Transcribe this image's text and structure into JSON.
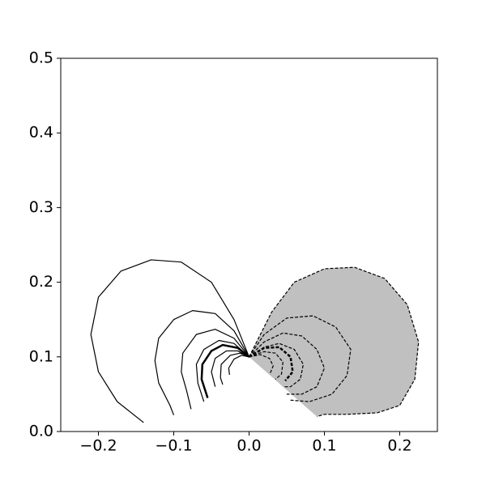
{
  "chart_data": {
    "type": "contour",
    "xlim": [
      -0.25,
      0.25
    ],
    "ylim": [
      0,
      0.5
    ],
    "xticks": [
      {
        "value": -0.2,
        "label": "−0.2"
      },
      {
        "value": -0.1,
        "label": "−0.1"
      },
      {
        "value": 0,
        "label": "0.0"
      },
      {
        "value": 0.1,
        "label": "0.1"
      },
      {
        "value": 0.2,
        "label": "0.2"
      }
    ],
    "yticks": [
      {
        "value": 0,
        "label": "0.0"
      },
      {
        "value": 0.1,
        "label": "0.1"
      },
      {
        "value": 0.2,
        "label": "0.2"
      },
      {
        "value": 0.3,
        "label": "0.3"
      },
      {
        "value": 0.4,
        "label": "0.4"
      },
      {
        "value": 0.5,
        "label": "0.5"
      }
    ],
    "grid": false,
    "series": [
      {
        "color": "#000000",
        "dashed": false,
        "width": 1.2,
        "x": [
          0,
          -0.02,
          -0.05,
          -0.09,
          -0.13,
          -0.17,
          -0.2,
          -0.21,
          -0.2,
          -0.175,
          -0.14
        ],
        "values": [
          0.1,
          0.15,
          0.2,
          0.227,
          0.23,
          0.215,
          0.18,
          0.13,
          0.08,
          0.04,
          0.012
        ]
      },
      {
        "color": "#000000",
        "dashed": false,
        "width": 1.2,
        "x": [
          0,
          -0.02,
          -0.045,
          -0.075,
          -0.1,
          -0.12,
          -0.125,
          -0.12,
          -0.105,
          -0.1
        ],
        "values": [
          0.1,
          0.135,
          0.158,
          0.162,
          0.15,
          0.125,
          0.095,
          0.065,
          0.035,
          0.022
        ]
      },
      {
        "color": "#000000",
        "dashed": false,
        "width": 1.2,
        "x": [
          0,
          -0.02,
          -0.045,
          -0.07,
          -0.088,
          -0.09,
          -0.083,
          -0.077
        ],
        "values": [
          0.1,
          0.125,
          0.137,
          0.13,
          0.105,
          0.08,
          0.055,
          0.03
        ]
      },
      {
        "color": "#000000",
        "dashed": false,
        "width": 1.2,
        "x": [
          0,
          -0.02,
          -0.04,
          -0.06,
          -0.07,
          -0.068,
          -0.06
        ],
        "values": [
          0.1,
          0.118,
          0.122,
          0.11,
          0.09,
          0.065,
          0.04
        ]
      },
      {
        "color": "#000000",
        "dashed": false,
        "width": 2.5,
        "x": [
          0,
          -0.015,
          -0.035,
          -0.05,
          -0.062,
          -0.063,
          -0.055
        ],
        "values": [
          0.1,
          0.112,
          0.116,
          0.108,
          0.09,
          0.07,
          0.045
        ]
      },
      {
        "color": "#000000",
        "dashed": false,
        "width": 1.2,
        "x": [
          0,
          -0.015,
          -0.03,
          -0.045,
          -0.05,
          -0.045
        ],
        "values": [
          0.1,
          0.108,
          0.108,
          0.098,
          0.08,
          0.06
        ]
      },
      {
        "color": "#000000",
        "dashed": false,
        "width": 1.2,
        "x": [
          0,
          -0.012,
          -0.025,
          -0.037,
          -0.038,
          -0.035
        ],
        "values": [
          0.1,
          0.105,
          0.102,
          0.09,
          0.072,
          0.063
        ]
      },
      {
        "color": "#000000",
        "dashed": false,
        "width": 1.2,
        "x": [
          0,
          -0.01,
          -0.02,
          -0.027,
          -0.026
        ],
        "values": [
          0.1,
          0.102,
          0.097,
          0.085,
          0.076
        ]
      },
      {
        "color": "#000000",
        "dashed": true,
        "width": 1.2,
        "fill": "#c0c0c0",
        "x": [
          0,
          0.01,
          0.03,
          0.06,
          0.1,
          0.14,
          0.18,
          0.21,
          0.225,
          0.22,
          0.2,
          0.17,
          0.13,
          0.1,
          0.09
        ],
        "values": [
          0.1,
          0.12,
          0.16,
          0.2,
          0.218,
          0.22,
          0.205,
          0.17,
          0.12,
          0.07,
          0.035,
          0.025,
          0.023,
          0.023,
          0.02
        ]
      },
      {
        "color": "#000000",
        "dashed": true,
        "width": 1.2,
        "x": [
          0,
          0.02,
          0.05,
          0.085,
          0.115,
          0.135,
          0.13,
          0.11,
          0.08,
          0.055
        ],
        "values": [
          0.1,
          0.13,
          0.152,
          0.155,
          0.14,
          0.11,
          0.075,
          0.05,
          0.04,
          0.042
        ]
      },
      {
        "color": "#000000",
        "dashed": true,
        "width": 1.2,
        "x": [
          0,
          0.02,
          0.045,
          0.07,
          0.09,
          0.1,
          0.09,
          0.07,
          0.05
        ],
        "values": [
          0.1,
          0.12,
          0.132,
          0.128,
          0.11,
          0.085,
          0.06,
          0.05,
          0.05
        ]
      },
      {
        "color": "#000000",
        "dashed": true,
        "width": 1.2,
        "x": [
          0,
          0.02,
          0.04,
          0.06,
          0.072,
          0.068,
          0.055,
          0.045
        ],
        "values": [
          0.1,
          0.113,
          0.118,
          0.11,
          0.09,
          0.07,
          0.06,
          0.06
        ]
      },
      {
        "color": "#000000",
        "dashed": true,
        "width": 2.5,
        "x": [
          0,
          0.02,
          0.04,
          0.055,
          0.058,
          0.048
        ],
        "values": [
          0.1,
          0.112,
          0.113,
          0.1,
          0.08,
          0.068
        ]
      },
      {
        "color": "#000000",
        "dashed": true,
        "width": 1.2,
        "x": [
          0,
          0.02,
          0.035,
          0.045,
          0.043,
          0.035
        ],
        "values": [
          0.1,
          0.107,
          0.105,
          0.093,
          0.077,
          0.07
        ]
      },
      {
        "color": "#000000",
        "dashed": true,
        "width": 1.2,
        "x": [
          0,
          0.015,
          0.027,
          0.032,
          0.028
        ],
        "values": [
          0.1,
          0.103,
          0.098,
          0.088,
          0.078
        ]
      }
    ]
  }
}
